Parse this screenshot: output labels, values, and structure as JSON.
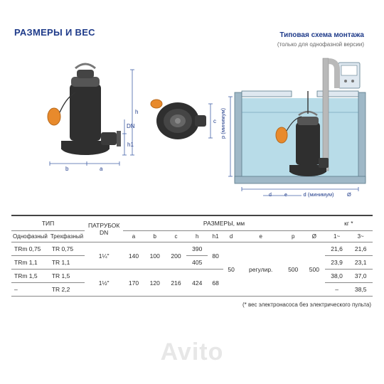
{
  "title": "РАЗМЕРЫ И ВЕС",
  "install": {
    "title": "Типовая схема монтажа",
    "subtitle": "(только для однофазной версии)"
  },
  "colors": {
    "primary": "#1f3b8a",
    "text": "#2b2b2b",
    "pump_body": "#2f2f2f",
    "pump_light": "#555555",
    "float": "#e88a2c",
    "float_rim": "#b86a1d",
    "water": "#b8dce8",
    "tank_wall": "#9fb8c7",
    "tank_border": "#5a7a8a",
    "dim_line": "#4462a8",
    "panel": "#dfe8f0",
    "pipe": "#b9b9b9"
  },
  "labels": {
    "a": "a",
    "b": "b",
    "c": "c",
    "h": "h",
    "h1": "h1",
    "DN": "DN",
    "p_min": "p (минимум)",
    "d_min": "d (минимум)",
    "diam": "Ø"
  },
  "table": {
    "header_group_type": "ТИП",
    "header_single": "Однофазный",
    "header_three": "Трехфазный",
    "header_dn": "ПАТРУБОК DN",
    "header_dims": "РАЗМЕРЫ, мм",
    "header_kg": "кг *",
    "cols": [
      "a",
      "b",
      "c",
      "h",
      "h1",
      "d",
      "e",
      "p",
      "Ø",
      "1~",
      "3~"
    ],
    "rows": [
      {
        "s": "TRm 0,75",
        "t": "TR 0,75",
        "dn": "1¼\"",
        "a": "140",
        "b": "100",
        "c": "200",
        "h": "390",
        "h1": "80",
        "d": "50",
        "e": "регулир.",
        "p": "500",
        "diam": "500",
        "w1": "21,6",
        "w3": "21,6"
      },
      {
        "s": "TRm 1,1",
        "t": "TR 1,1",
        "dn": "",
        "a": "",
        "b": "",
        "c": "",
        "h": "405",
        "h1": "",
        "d": "",
        "e": "",
        "p": "",
        "diam": "",
        "w1": "23,9",
        "w3": "23,1"
      },
      {
        "s": "TRm 1,5",
        "t": "TR 1,5",
        "dn": "1½\"",
        "a": "170",
        "b": "120",
        "c": "216",
        "h": "424",
        "h1": "68",
        "d": "",
        "e": "",
        "p": "",
        "diam": "",
        "w1": "38,0",
        "w3": "37,0"
      },
      {
        "s": "–",
        "t": "TR 2,2",
        "dn": "",
        "a": "",
        "b": "",
        "c": "",
        "h": "",
        "h1": "",
        "d": "",
        "e": "",
        "p": "",
        "diam": "",
        "w1": "–",
        "w3": "38,5"
      }
    ]
  },
  "footnote": "(* вес электронасоса без электрического пульта)",
  "watermark": "Avito"
}
